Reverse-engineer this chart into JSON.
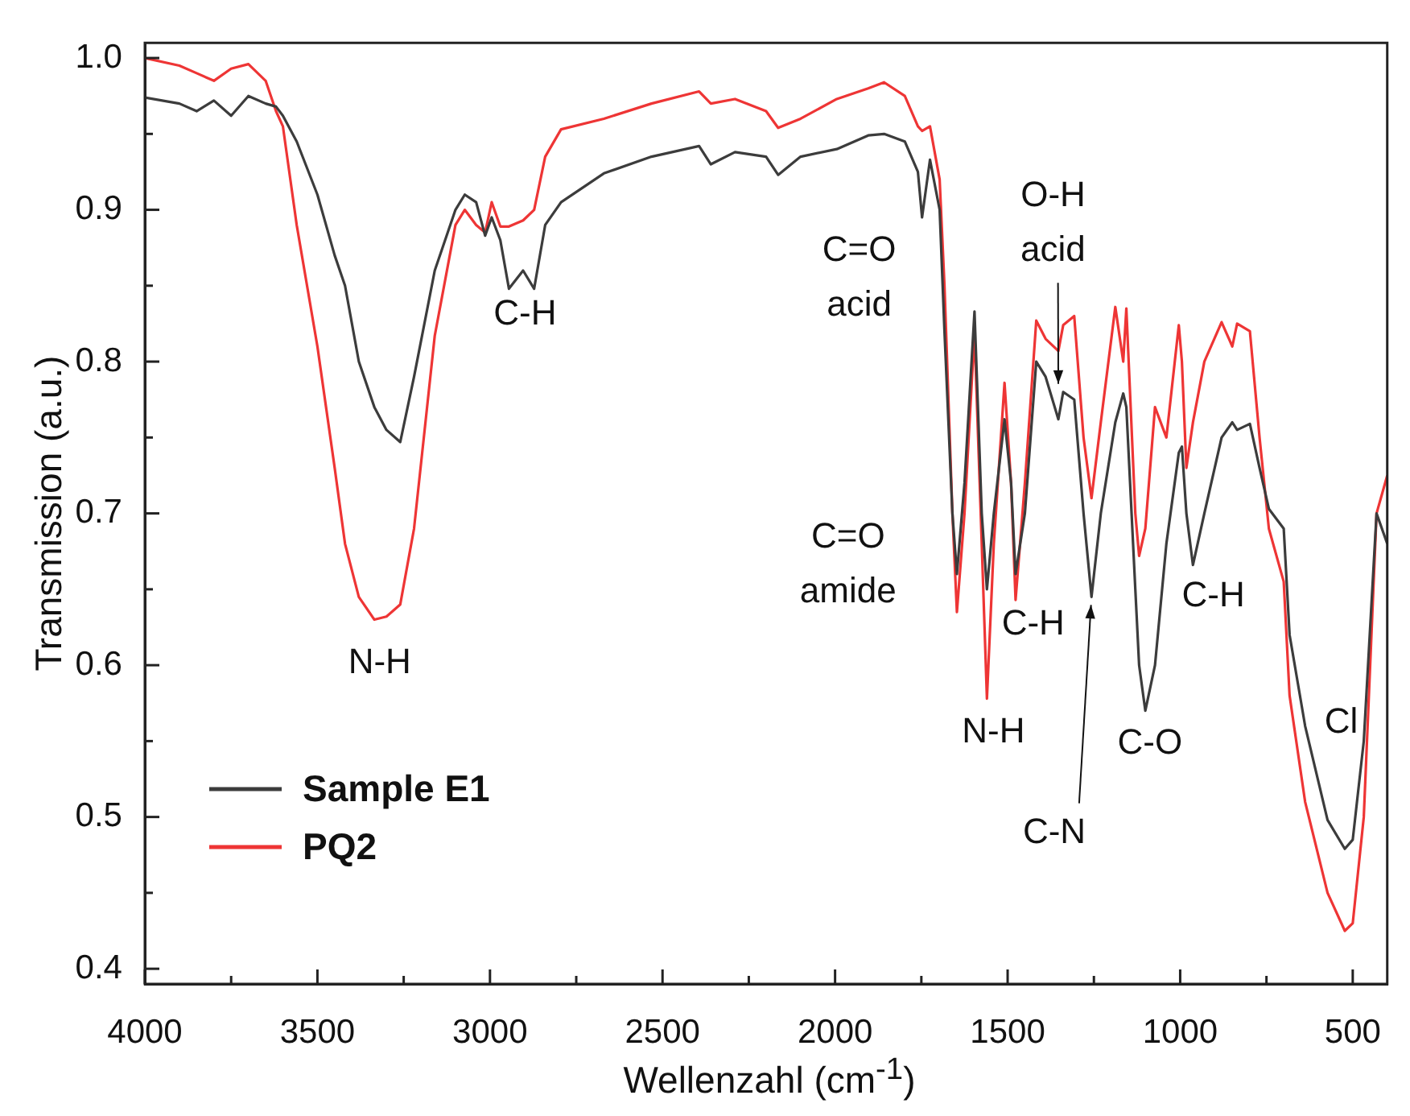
{
  "chart_data": {
    "type": "line",
    "xlabel": "Wellenzahl (cm$^{-1}$)",
    "ylabel": "Transmission (a.u.)",
    "x": [
      4000,
      3900,
      3850,
      3800,
      3750,
      3700,
      3650,
      3620,
      3600,
      3560,
      3500,
      3450,
      3420,
      3380,
      3335,
      3300,
      3260,
      3220,
      3160,
      3100,
      3073,
      3040,
      3014,
      2995,
      2970,
      2945,
      2904,
      2872,
      2840,
      2794,
      2670,
      2532,
      2394,
      2360,
      2290,
      2200,
      2165,
      2100,
      1995,
      1904,
      1858,
      1798,
      1760,
      1748,
      1725,
      1697,
      1683,
      1660,
      1647,
      1625,
      1596,
      1575,
      1560,
      1540,
      1509,
      1490,
      1477,
      1450,
      1417,
      1390,
      1353,
      1339,
      1307,
      1280,
      1257,
      1230,
      1188,
      1165,
      1156,
      1130,
      1119,
      1101,
      1073,
      1040,
      1004,
      995,
      982,
      963,
      930,
      880,
      849,
      835,
      798,
      770,
      743,
      700,
      683,
      638,
      573,
      523,
      500,
      468,
      431,
      400
    ],
    "series": [
      {
        "name": "Sample E1",
        "color": "#3c3c3c",
        "values": [
          0.974,
          0.97,
          0.965,
          0.972,
          0.962,
          0.975,
          0.97,
          0.968,
          0.962,
          0.945,
          0.91,
          0.87,
          0.85,
          0.8,
          0.77,
          0.755,
          0.747,
          0.79,
          0.86,
          0.9,
          0.91,
          0.905,
          0.883,
          0.895,
          0.88,
          0.848,
          0.86,
          0.848,
          0.89,
          0.905,
          0.924,
          0.935,
          0.942,
          0.93,
          0.938,
          0.935,
          0.923,
          0.935,
          0.94,
          0.949,
          0.95,
          0.945,
          0.925,
          0.895,
          0.933,
          0.9,
          0.82,
          0.7,
          0.66,
          0.72,
          0.833,
          0.7,
          0.65,
          0.7,
          0.762,
          0.72,
          0.66,
          0.7,
          0.8,
          0.79,
          0.762,
          0.78,
          0.775,
          0.7,
          0.645,
          0.7,
          0.76,
          0.779,
          0.77,
          0.65,
          0.6,
          0.57,
          0.6,
          0.68,
          0.74,
          0.744,
          0.7,
          0.666,
          0.7,
          0.75,
          0.76,
          0.755,
          0.759,
          0.73,
          0.703,
          0.69,
          0.62,
          0.56,
          0.498,
          0.479,
          0.485,
          0.55,
          0.7,
          0.68
        ]
      },
      {
        "name": "PQ2",
        "color": "#ee3535",
        "values": [
          1.0,
          0.995,
          0.99,
          0.985,
          0.993,
          0.996,
          0.985,
          0.965,
          0.955,
          0.89,
          0.81,
          0.73,
          0.68,
          0.645,
          0.63,
          0.632,
          0.64,
          0.69,
          0.817,
          0.89,
          0.9,
          0.89,
          0.885,
          0.905,
          0.889,
          0.889,
          0.893,
          0.9,
          0.935,
          0.953,
          0.96,
          0.97,
          0.978,
          0.97,
          0.973,
          0.965,
          0.954,
          0.96,
          0.973,
          0.98,
          0.984,
          0.975,
          0.955,
          0.952,
          0.955,
          0.92,
          0.85,
          0.7,
          0.635,
          0.7,
          0.819,
          0.68,
          0.578,
          0.68,
          0.786,
          0.72,
          0.643,
          0.72,
          0.827,
          0.815,
          0.807,
          0.824,
          0.83,
          0.75,
          0.71,
          0.76,
          0.836,
          0.8,
          0.835,
          0.7,
          0.672,
          0.69,
          0.77,
          0.75,
          0.824,
          0.8,
          0.73,
          0.76,
          0.8,
          0.826,
          0.81,
          0.825,
          0.82,
          0.75,
          0.69,
          0.655,
          0.58,
          0.51,
          0.45,
          0.425,
          0.43,
          0.5,
          0.7,
          0.725
        ]
      }
    ],
    "xlim": [
      4000,
      400
    ],
    "xticks": [
      4000,
      {
        "value": 3750,
        "label": null
      },
      3500,
      {
        "value": 3250,
        "label": null
      },
      3000,
      {
        "value": 2750,
        "label": null
      },
      2500,
      {
        "value": 2250,
        "label": null
      },
      2000,
      {
        "value": 1750,
        "label": null
      },
      1500,
      {
        "value": 1250,
        "label": null
      },
      1000,
      {
        "value": 750,
        "label": null
      },
      500
    ],
    "ylim": [
      0.39,
      1.01
    ],
    "yticks": [
      0.4,
      {
        "value": 0.45,
        "label": null
      },
      0.5,
      {
        "value": 0.55,
        "label": null
      },
      0.6,
      {
        "value": 0.65,
        "label": null
      },
      0.7,
      {
        "value": 0.75,
        "label": null
      },
      0.8,
      {
        "value": 0.85,
        "label": null
      },
      0.9,
      {
        "value": 0.95,
        "label": null
      },
      {
        "value": 1,
        "label": "1.0"
      }
    ],
    "grid": false,
    "legend": "bottom left",
    "marker": "none",
    "line_style": "solid",
    "annotations": [
      "N-H",
      "C-H",
      "C=O acid",
      {
        "text": "O-H acid",
        "x": 1353,
        "y": 0.78
      },
      "C=O amide",
      "C-H",
      "N-H",
      {
        "text": "C-N",
        "x": 1257,
        "y": 0.645
      },
      "C-O",
      "C-H",
      "Cl"
    ]
  }
}
